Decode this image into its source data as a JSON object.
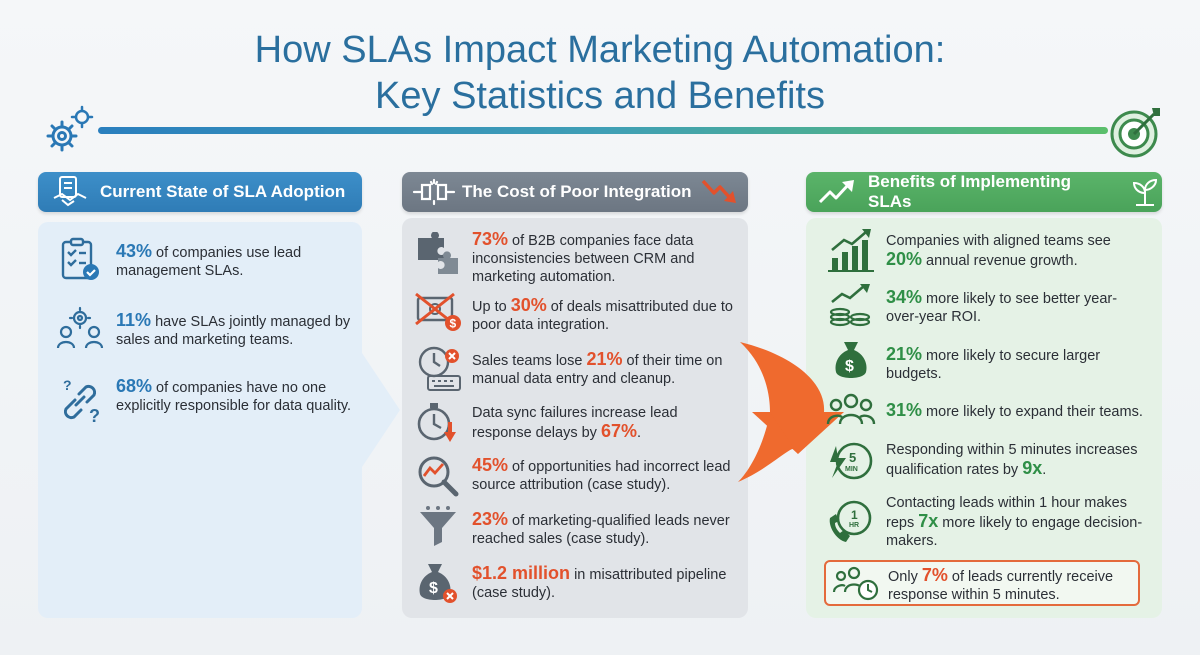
{
  "title": {
    "line1": "How SLAs Impact Marketing Automation:",
    "line2": "Key Statistics and Benefits"
  },
  "colors": {
    "title": "#2a6f9e",
    "blue_accent": "#2a78b5",
    "red_accent": "#e2512c",
    "green_accent": "#2f8f47"
  },
  "columns": [
    {
      "header": "Current State of SLA Adoption",
      "header_icon": "handshake-document-icon",
      "items": [
        {
          "highlight": "43%",
          "text": " of companies use lead management SLAs.",
          "icon": "clipboard-check-icon"
        },
        {
          "highlight": "11%",
          "text": " have SLAs jointly managed by sales and marketing teams.",
          "icon": "team-gear-icon"
        },
        {
          "highlight": "68%",
          "text": " of companies have no one explicitly responsible for data quality.",
          "icon": "broken-link-question-icon"
        }
      ]
    },
    {
      "header": "The Cost of Poor Integration",
      "header_icon": "disconnected-plug-icon",
      "items": [
        {
          "highlight": "73%",
          "text": " of B2B companies face data inconsistencies between CRM and marketing automation.",
          "icon": "puzzle-icon"
        },
        {
          "prefix": "Up to ",
          "highlight": "30%",
          "text": " of deals misattributed due to poor data integration.",
          "icon": "crossed-money-icon"
        },
        {
          "prefix": "Sales teams lose ",
          "highlight": "21%",
          "text": " of their time on manual data entry and cleanup.",
          "icon": "clock-keyboard-icon"
        },
        {
          "prefix": "Data sync failures increase lead response delays by ",
          "highlight": "67%",
          "text": ".",
          "icon": "stopwatch-down-icon"
        },
        {
          "highlight": "45%",
          "text": " of opportunities had incorrect lead source attribution (case study).",
          "icon": "magnifier-chart-icon"
        },
        {
          "highlight": "23%",
          "text": " of marketing-qualified leads never reached sales (case study).",
          "icon": "funnel-icon"
        },
        {
          "highlight": "$1.2 million",
          "text": " in misattributed pipeline (case study).",
          "icon": "money-bag-x-icon"
        }
      ]
    },
    {
      "header": "Benefits of Implementing SLAs",
      "header_icon": "trend-up-icon",
      "items": [
        {
          "prefix": "Companies with aligned teams see ",
          "highlight": "20%",
          "text": " annual revenue growth.",
          "icon": "bar-chart-up-icon"
        },
        {
          "highlight": "34%",
          "text": " more likely to see better year-over-year ROI.",
          "icon": "coins-growth-icon"
        },
        {
          "highlight": "21%",
          "text": " more likely to secure larger budgets.",
          "icon": "money-bag-icon"
        },
        {
          "highlight": "31%",
          "text": " more likely to expand their teams.",
          "icon": "team-icon"
        },
        {
          "prefix": "Responding within 5 minutes increases qualification rates by ",
          "highlight": "9x",
          "text": ".",
          "icon": "five-minute-bolt-icon"
        },
        {
          "prefix": "Contacting leads within 1 hour makes reps ",
          "highlight": "7x",
          "text": " more likely to engage decision-makers.",
          "icon": "one-hour-phone-icon"
        },
        {
          "prefix": "Only ",
          "highlight": "7%",
          "text": " of leads currently receive response within 5 minutes.",
          "icon": "team-clock-icon"
        }
      ],
      "icon_sub": {
        "five_min": "5",
        "five_min_unit": "MIN",
        "one_hr": "1",
        "one_hr_unit": "HR"
      }
    }
  ]
}
